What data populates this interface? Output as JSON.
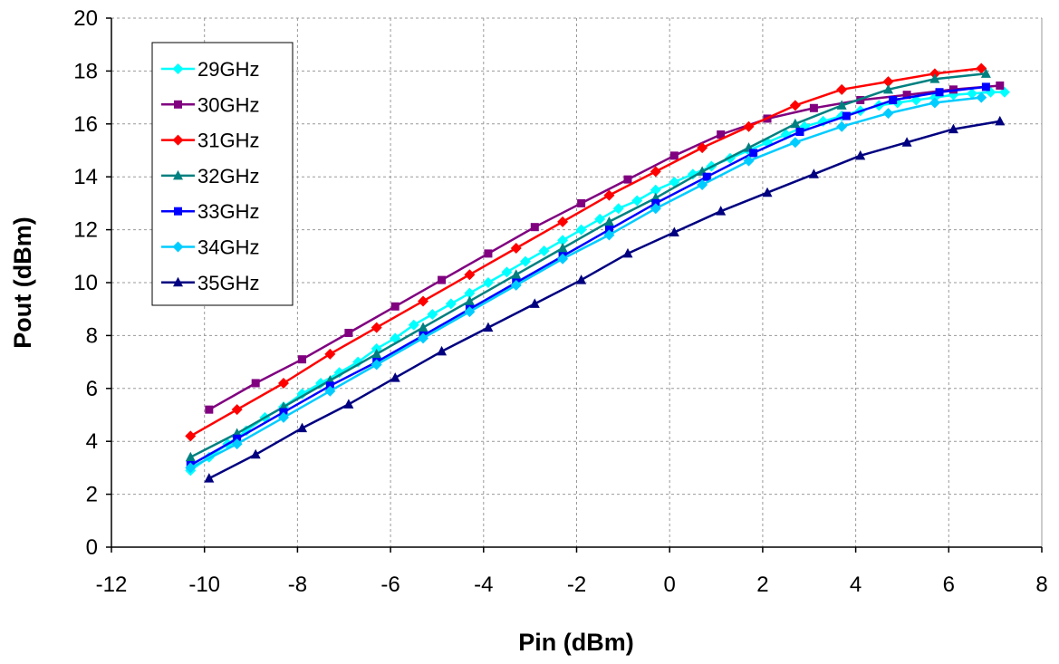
{
  "chart_data": {
    "type": "line",
    "title": "",
    "xlabel": "Pin (dBm)",
    "ylabel": "Pout (dBm)",
    "xlim": [
      -12,
      8
    ],
    "ylim": [
      0,
      20
    ],
    "xticks": [
      -12,
      -10,
      -8,
      -6,
      -4,
      -2,
      0,
      2,
      4,
      6,
      8
    ],
    "yticks": [
      0,
      2,
      4,
      6,
      8,
      10,
      12,
      14,
      16,
      18,
      20
    ],
    "grid": true,
    "legend_position": "top-left",
    "series": [
      {
        "name": "29GHz",
        "color": "#00ffff",
        "marker": "diamond",
        "x": [
          -10.3,
          -9.9,
          -9.5,
          -9.1,
          -8.7,
          -8.3,
          -7.9,
          -7.5,
          -7.1,
          -6.7,
          -6.3,
          -5.9,
          -5.5,
          -5.1,
          -4.7,
          -4.3,
          -3.9,
          -3.5,
          -3.1,
          -2.7,
          -2.3,
          -1.9,
          -1.5,
          -1.1,
          -0.7,
          -0.3,
          0.1,
          0.5,
          0.9,
          1.3,
          1.7,
          2.1,
          2.5,
          2.9,
          3.3,
          3.7,
          4.1,
          4.5,
          4.9,
          5.3,
          5.7,
          6.1,
          6.5,
          6.9,
          7.2
        ],
        "y": [
          2.9,
          3.4,
          3.9,
          4.4,
          4.9,
          5.3,
          5.8,
          6.2,
          6.6,
          7.0,
          7.5,
          7.9,
          8.4,
          8.8,
          9.2,
          9.6,
          10.0,
          10.4,
          10.8,
          11.2,
          11.6,
          12.0,
          12.4,
          12.8,
          13.1,
          13.5,
          13.8,
          14.1,
          14.4,
          14.7,
          15.0,
          15.3,
          15.6,
          15.9,
          16.1,
          16.3,
          16.5,
          16.7,
          16.8,
          16.9,
          17.0,
          17.1,
          17.15,
          17.2,
          17.2
        ]
      },
      {
        "name": "30GHz",
        "color": "#800080",
        "marker": "square",
        "x": [
          -9.9,
          -8.9,
          -7.9,
          -6.9,
          -5.9,
          -4.9,
          -3.9,
          -2.9,
          -1.9,
          -0.9,
          0.1,
          1.1,
          2.1,
          3.1,
          4.1,
          5.1,
          6.1,
          7.1
        ],
        "y": [
          5.2,
          6.2,
          7.1,
          8.1,
          9.1,
          10.1,
          11.1,
          12.1,
          13.0,
          13.9,
          14.8,
          15.6,
          16.2,
          16.6,
          16.9,
          17.1,
          17.3,
          17.45
        ]
      },
      {
        "name": "31GHz",
        "color": "#ff0000",
        "marker": "diamond",
        "x": [
          -10.3,
          -9.3,
          -8.3,
          -7.3,
          -6.3,
          -5.3,
          -4.3,
          -3.3,
          -2.3,
          -1.3,
          -0.3,
          0.7,
          1.7,
          2.7,
          3.7,
          4.7,
          5.7,
          6.7
        ],
        "y": [
          4.2,
          5.2,
          6.2,
          7.3,
          8.3,
          9.3,
          10.3,
          11.3,
          12.3,
          13.3,
          14.2,
          15.1,
          15.9,
          16.7,
          17.3,
          17.6,
          17.9,
          18.1
        ]
      },
      {
        "name": "32GHz",
        "color": "#008080",
        "marker": "triangle",
        "x": [
          -10.3,
          -9.3,
          -8.3,
          -7.3,
          -6.3,
          -5.3,
          -4.3,
          -3.3,
          -2.3,
          -1.3,
          -0.3,
          0.7,
          1.7,
          2.7,
          3.7,
          4.7,
          5.7,
          6.8
        ],
        "y": [
          3.4,
          4.3,
          5.3,
          6.3,
          7.3,
          8.3,
          9.3,
          10.3,
          11.3,
          12.3,
          13.2,
          14.2,
          15.1,
          16.0,
          16.7,
          17.3,
          17.7,
          17.9
        ]
      },
      {
        "name": "33GHz",
        "color": "#0000ff",
        "marker": "square",
        "x": [
          -10.3,
          -9.3,
          -8.3,
          -7.3,
          -6.3,
          -5.3,
          -4.3,
          -3.3,
          -2.3,
          -1.3,
          -0.3,
          0.8,
          1.8,
          2.8,
          3.8,
          4.8,
          5.8,
          6.8
        ],
        "y": [
          3.1,
          4.1,
          5.1,
          6.1,
          7.0,
          8.0,
          9.0,
          10.0,
          11.0,
          12.0,
          13.0,
          14.0,
          14.9,
          15.7,
          16.3,
          16.9,
          17.2,
          17.4
        ]
      },
      {
        "name": "34GHz",
        "color": "#00ccff",
        "marker": "diamond",
        "x": [
          -10.3,
          -9.3,
          -8.3,
          -7.3,
          -6.3,
          -5.3,
          -4.3,
          -3.3,
          -2.3,
          -1.3,
          -0.3,
          0.7,
          1.7,
          2.7,
          3.7,
          4.7,
          5.7,
          6.7
        ],
        "y": [
          3.0,
          3.9,
          4.9,
          5.9,
          6.9,
          7.9,
          8.9,
          9.9,
          10.9,
          11.8,
          12.8,
          13.7,
          14.6,
          15.3,
          15.9,
          16.4,
          16.8,
          17.0
        ]
      },
      {
        "name": "35GHz",
        "color": "#000080",
        "marker": "triangle",
        "x": [
          -9.9,
          -8.9,
          -7.9,
          -6.9,
          -5.9,
          -4.9,
          -3.9,
          -2.9,
          -1.9,
          -0.9,
          0.1,
          1.1,
          2.1,
          3.1,
          4.1,
          5.1,
          6.1,
          7.1
        ],
        "y": [
          2.6,
          3.5,
          4.5,
          5.4,
          6.4,
          7.4,
          8.3,
          9.2,
          10.1,
          11.1,
          11.9,
          12.7,
          13.4,
          14.1,
          14.8,
          15.3,
          15.8,
          16.1
        ]
      }
    ]
  }
}
